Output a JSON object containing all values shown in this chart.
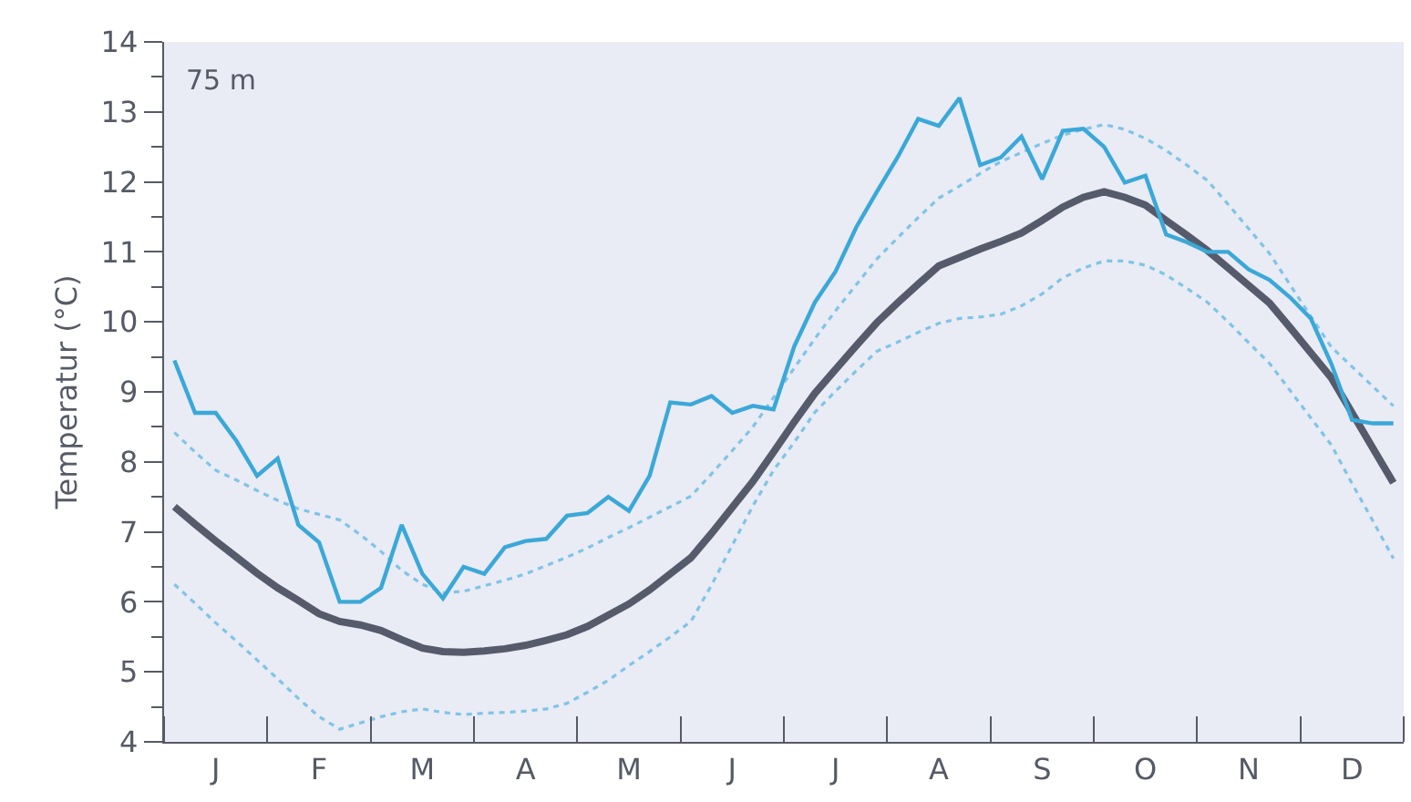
{
  "chart_data": {
    "type": "line",
    "ylabel": "Temperatur (°C)",
    "annotations": [
      "75 m"
    ],
    "categories": [
      null,
      null,
      "J",
      null,
      null,
      null,
      null,
      "F",
      null,
      null,
      null,
      null,
      "M",
      null,
      null,
      null,
      null,
      "A",
      null,
      null,
      null,
      null,
      "M",
      null,
      null,
      null,
      null,
      "J",
      null,
      null,
      null,
      null,
      "J",
      null,
      null,
      null,
      null,
      "A",
      null,
      null,
      null,
      null,
      "S",
      null,
      null,
      null,
      null,
      "O",
      null,
      null,
      null,
      null,
      "N",
      null,
      null,
      null,
      null,
      "D",
      null,
      null
    ],
    "ylim": [
      4,
      14
    ],
    "yticks": [
      4,
      {
        "value": 4.5,
        "label": null
      },
      5,
      {
        "value": 5.5,
        "label": null
      },
      6,
      {
        "value": 6.5,
        "label": null
      },
      7,
      {
        "value": 7.5,
        "label": null
      },
      8,
      {
        "value": 8.5,
        "label": null
      },
      9,
      {
        "value": 9.5,
        "label": null
      },
      10,
      {
        "value": 10.5,
        "label": null
      },
      11,
      {
        "value": 11.5,
        "label": null
      },
      12,
      {
        "value": 12.5,
        "label": null
      },
      13,
      {
        "value": 13.5,
        "label": null
      },
      14
    ],
    "series": [
      {
        "color": "#7fc4e6",
        "line_style": "dotted",
        "values": [
          8.42,
          8.14,
          7.88,
          7.74,
          7.59,
          7.45,
          7.33,
          7.25,
          7.17,
          6.96,
          6.72,
          6.45,
          6.25,
          6.13,
          6.15,
          6.23,
          6.31,
          6.4,
          6.52,
          6.64,
          6.77,
          6.92,
          7.06,
          7.21,
          7.36,
          7.51,
          7.83,
          8.16,
          8.5,
          8.92,
          9.34,
          9.76,
          10.16,
          10.53,
          10.9,
          11.2,
          11.49,
          11.77,
          11.94,
          12.12,
          12.29,
          12.42,
          12.55,
          12.67,
          12.75,
          12.82,
          12.75,
          12.62,
          12.45,
          12.24,
          12.02,
          11.68,
          11.33,
          10.98,
          10.53,
          10.08,
          9.64,
          9.36,
          9.08,
          8.8
        ]
      },
      {
        "color": "#7fc4e6",
        "line_style": "dotted",
        "values": [
          6.25,
          5.98,
          5.7,
          5.44,
          5.17,
          4.9,
          4.62,
          4.36,
          4.18,
          4.27,
          4.36,
          4.43,
          4.47,
          4.42,
          4.39,
          4.41,
          4.42,
          4.44,
          4.47,
          4.55,
          4.71,
          4.88,
          5.09,
          5.29,
          5.5,
          5.72,
          6.24,
          6.81,
          7.37,
          7.88,
          8.28,
          8.71,
          9.01,
          9.3,
          9.58,
          9.71,
          9.85,
          9.98,
          10.05,
          10.07,
          10.11,
          10.23,
          10.4,
          10.63,
          10.77,
          10.87,
          10.87,
          10.81,
          10.67,
          10.48,
          10.28,
          10.0,
          9.7,
          9.41,
          9.02,
          8.63,
          8.24,
          7.69,
          7.16,
          6.62
        ]
      },
      {
        "color": "#565b6b",
        "line_style": "solid",
        "values": [
          7.36,
          7.11,
          6.87,
          6.64,
          6.41,
          6.2,
          6.02,
          5.83,
          5.72,
          5.67,
          5.59,
          5.46,
          5.34,
          5.29,
          5.28,
          5.3,
          5.33,
          5.38,
          5.45,
          5.53,
          5.65,
          5.81,
          5.97,
          6.17,
          6.4,
          6.63,
          6.98,
          7.35,
          7.72,
          8.14,
          8.57,
          8.98,
          9.32,
          9.66,
          9.99,
          10.27,
          10.54,
          10.8,
          10.92,
          11.04,
          11.15,
          11.27,
          11.45,
          11.64,
          11.78,
          11.86,
          11.78,
          11.67,
          11.45,
          11.24,
          11.02,
          10.77,
          10.52,
          10.27,
          9.92,
          9.56,
          9.2,
          8.7,
          8.2,
          7.7
        ]
      },
      {
        "color": "#3aa8d8",
        "line_style": "solid",
        "values": [
          9.45,
          8.7,
          8.7,
          8.3,
          7.8,
          8.05,
          7.1,
          6.85,
          6.0,
          6.0,
          6.2,
          7.1,
          6.4,
          6.05,
          6.5,
          6.4,
          6.78,
          6.87,
          6.9,
          7.23,
          7.27,
          7.5,
          7.3,
          7.8,
          8.85,
          8.82,
          8.94,
          8.7,
          8.8,
          8.75,
          9.65,
          10.28,
          10.72,
          11.35,
          11.86,
          12.35,
          12.9,
          12.8,
          13.2,
          12.24,
          12.35,
          12.65,
          12.04,
          12.73,
          12.76,
          12.5,
          11.99,
          12.09,
          11.25,
          11.14,
          11.0,
          11.0,
          10.75,
          10.6,
          10.35,
          10.05,
          9.4,
          8.6,
          8.55,
          8.55
        ]
      }
    ]
  }
}
